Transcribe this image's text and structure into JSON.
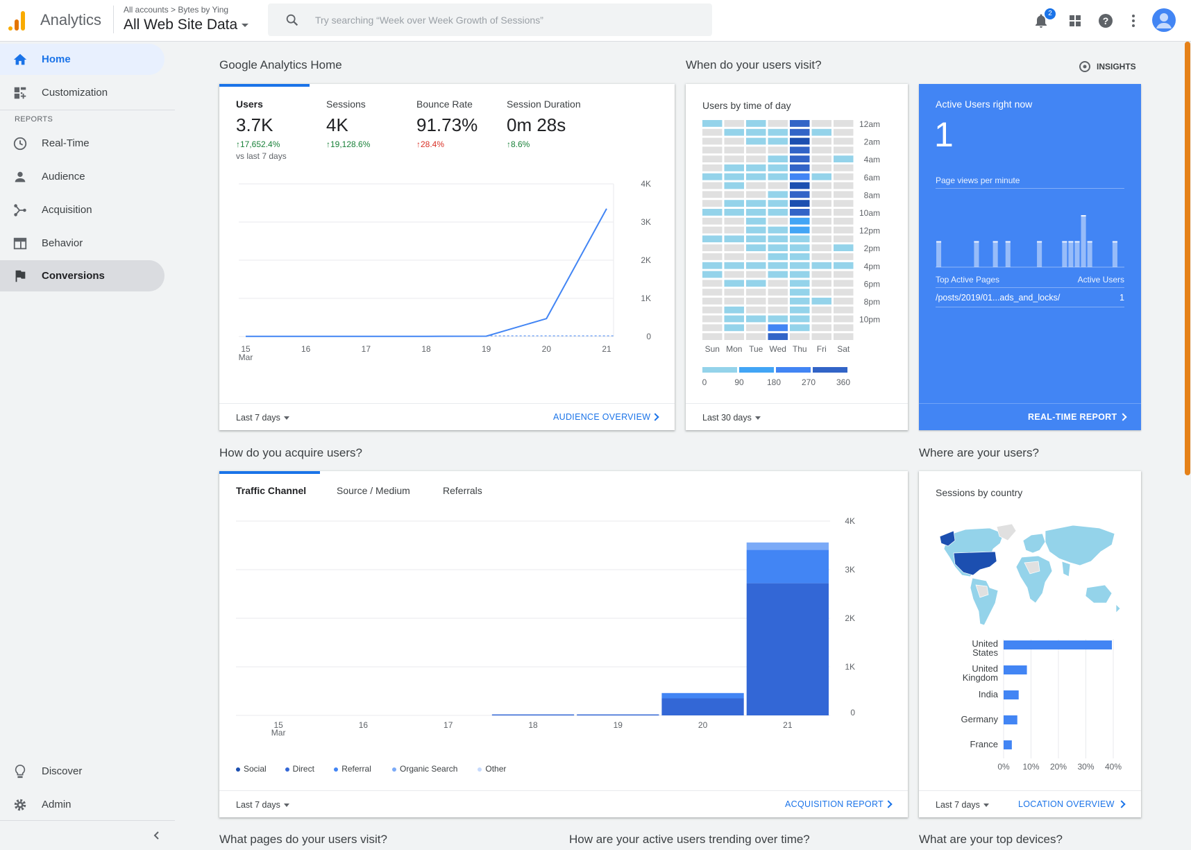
{
  "header": {
    "app_name": "Analytics",
    "breadcrumb": "All accounts > Bytes by Ying",
    "view": "All Web Site Data",
    "search_placeholder": "Try searching “Week over Week Growth of Sessions”",
    "notification_count": "2",
    "colors": {
      "logo_dark": "#e37400",
      "logo_light": "#f9ab00"
    }
  },
  "sidebar": {
    "items": [
      {
        "label": "Home",
        "icon": "home-icon",
        "state": "active"
      },
      {
        "label": "Customization",
        "icon": "dashboard-icon"
      }
    ],
    "reports_label": "REPORTS",
    "reports": [
      {
        "label": "Real-Time",
        "icon": "clock-icon"
      },
      {
        "label": "Audience",
        "icon": "person-icon"
      },
      {
        "label": "Acquisition",
        "icon": "acquisition-icon"
      },
      {
        "label": "Behavior",
        "icon": "behavior-icon"
      },
      {
        "label": "Conversions",
        "icon": "flag-icon",
        "state": "hover"
      }
    ],
    "bottom": [
      {
        "label": "Discover",
        "icon": "lightbulb-icon"
      },
      {
        "label": "Admin",
        "icon": "gear-icon"
      }
    ]
  },
  "home": {
    "title": "Google Analytics Home",
    "metrics": [
      {
        "label": "Users",
        "value": "3.7K",
        "change": "17,652.4%",
        "direction": "up-green"
      },
      {
        "label": "Sessions",
        "value": "4K",
        "change": "19,128.6%",
        "direction": "up-green"
      },
      {
        "label": "Bounce Rate",
        "value": "91.73%",
        "change": "28.4%",
        "direction": "up-red"
      },
      {
        "label": "Session Duration",
        "value": "0m 28s",
        "change": "8.6%",
        "direction": "up-green"
      }
    ],
    "compare_note": "vs last 7 days",
    "footer_range": "Last 7 days",
    "footer_link": "AUDIENCE OVERVIEW"
  },
  "visit": {
    "title": "When do your users visit?",
    "insights": "INSIGHTS",
    "subtitle": "Users by time of day",
    "footer_range": "Last 30 days"
  },
  "realtime": {
    "title": "Active Users right now",
    "count": "1",
    "pv_label": "Page views per minute",
    "top_pages_label": "Top Active Pages",
    "active_users_label": "Active Users",
    "pages": [
      {
        "path": "/posts/2019/01...ads_and_locks/",
        "users": "1"
      }
    ],
    "pageviews_per_minute": [
      1,
      0,
      0,
      0,
      0,
      0,
      1,
      0,
      0,
      1,
      0,
      1,
      0,
      0,
      0,
      0,
      1,
      0,
      0,
      0,
      1,
      1,
      1,
      2,
      1,
      0,
      0,
      0,
      1,
      0
    ],
    "footer_link": "REAL-TIME REPORT"
  },
  "acquire": {
    "title": "How do you acquire users?",
    "tabs": [
      "Traffic Channel",
      "Source / Medium",
      "Referrals"
    ],
    "footer_range": "Last 7 days",
    "footer_link": "ACQUISITION REPORT"
  },
  "where": {
    "title": "Where are your users?",
    "subtitle": "Sessions by country",
    "footer_range": "Last 7 days",
    "footer_link": "LOCATION OVERVIEW"
  },
  "bottom_titles": [
    "What pages do your users visit?",
    "How are your active users trending over time?",
    "What are your top devices?"
  ],
  "chart_data": [
    {
      "type": "line",
      "title": "",
      "x": [
        "15 Mar",
        "16",
        "17",
        "18",
        "19",
        "20",
        "21"
      ],
      "series": [
        {
          "name": "Users",
          "values": [
            5,
            5,
            5,
            5,
            10,
            470,
            3350
          ]
        }
      ],
      "ylim": [
        0,
        4000
      ],
      "yticks": [
        "0",
        "1K",
        "2K",
        "3K",
        "4K"
      ],
      "grid": true
    },
    {
      "type": "heatmap",
      "title": "Users by time of day",
      "x": [
        "Sun",
        "Mon",
        "Tue",
        "Wed",
        "Thu",
        "Fri",
        "Sat"
      ],
      "y_labels": [
        "12am",
        "2am",
        "4am",
        "6am",
        "8am",
        "10am",
        "12pm",
        "2pm",
        "4pm",
        "6pm",
        "8pm",
        "10pm"
      ],
      "color_scale": {
        "ticks": [
          "0",
          "90",
          "180",
          "270",
          "360"
        ],
        "colors": [
          "#e0e0e0",
          "#94d3ea",
          "#42a5f5",
          "#4285f4",
          "#3264c7",
          "#1c4fb0"
        ]
      },
      "values": [
        [
          1,
          0,
          1,
          0,
          4,
          0,
          0
        ],
        [
          0,
          1,
          1,
          1,
          4,
          1,
          0
        ],
        [
          0,
          0,
          1,
          1,
          5,
          0,
          0
        ],
        [
          0,
          0,
          0,
          0,
          4,
          0,
          0
        ],
        [
          0,
          0,
          0,
          1,
          4,
          0,
          1
        ],
        [
          0,
          1,
          1,
          1,
          4,
          0,
          0
        ],
        [
          1,
          1,
          1,
          1,
          3,
          1,
          0
        ],
        [
          0,
          1,
          0,
          0,
          5,
          0,
          0
        ],
        [
          0,
          0,
          0,
          1,
          4,
          0,
          0
        ],
        [
          0,
          1,
          1,
          1,
          5,
          0,
          0
        ],
        [
          1,
          1,
          1,
          1,
          4,
          0,
          0
        ],
        [
          0,
          0,
          1,
          0,
          2,
          0,
          0
        ],
        [
          0,
          0,
          1,
          1,
          2,
          0,
          0
        ],
        [
          1,
          1,
          1,
          1,
          1,
          0,
          0
        ],
        [
          0,
          0,
          1,
          1,
          1,
          0,
          1
        ],
        [
          0,
          0,
          0,
          1,
          1,
          0,
          0
        ],
        [
          1,
          1,
          1,
          1,
          1,
          1,
          1
        ],
        [
          1,
          0,
          0,
          1,
          1,
          0,
          0
        ],
        [
          0,
          1,
          1,
          0,
          1,
          0,
          0
        ],
        [
          0,
          0,
          0,
          0,
          1,
          0,
          0
        ],
        [
          0,
          0,
          0,
          0,
          1,
          1,
          0
        ],
        [
          0,
          1,
          0,
          0,
          1,
          0,
          0
        ],
        [
          0,
          1,
          1,
          1,
          1,
          0,
          0
        ],
        [
          0,
          1,
          0,
          3,
          1,
          0,
          0
        ],
        [
          0,
          0,
          0,
          4,
          0,
          0,
          0
        ]
      ]
    },
    {
      "type": "bar",
      "title": "",
      "categories": [
        "15 Mar",
        "16",
        "17",
        "18",
        "19",
        "20",
        "21"
      ],
      "series": [
        {
          "name": "Social",
          "values": [
            0,
            0,
            0,
            0,
            0,
            0,
            0
          ],
          "color": "#1c4fb0"
        },
        {
          "name": "Direct",
          "values": [
            0,
            0,
            0,
            20,
            20,
            350,
            2720
          ],
          "color": "#3367d6"
        },
        {
          "name": "Referral",
          "values": [
            0,
            0,
            0,
            0,
            0,
            110,
            690
          ],
          "color": "#4285f4"
        },
        {
          "name": "Organic Search",
          "values": [
            0,
            0,
            0,
            0,
            0,
            0,
            150
          ],
          "color": "#7baaf7"
        },
        {
          "name": "Other",
          "values": [
            0,
            0,
            0,
            0,
            0,
            0,
            0
          ],
          "color": "#c6dafc"
        }
      ],
      "ylim": [
        0,
        4000
      ],
      "yticks": [
        "0",
        "1K",
        "2K",
        "3K",
        "4K"
      ],
      "legend": "bottom-left",
      "grid": true
    },
    {
      "type": "bar",
      "title": "Sessions by country",
      "orientation": "horizontal",
      "categories": [
        "United States",
        "United Kingdom",
        "India",
        "Germany",
        "France"
      ],
      "values": [
        39.5,
        8.5,
        5.5,
        5.0,
        3.0
      ],
      "xticks": [
        "0%",
        "10%",
        "20%",
        "30%",
        "40%"
      ],
      "xlim": [
        0,
        40
      ]
    }
  ]
}
